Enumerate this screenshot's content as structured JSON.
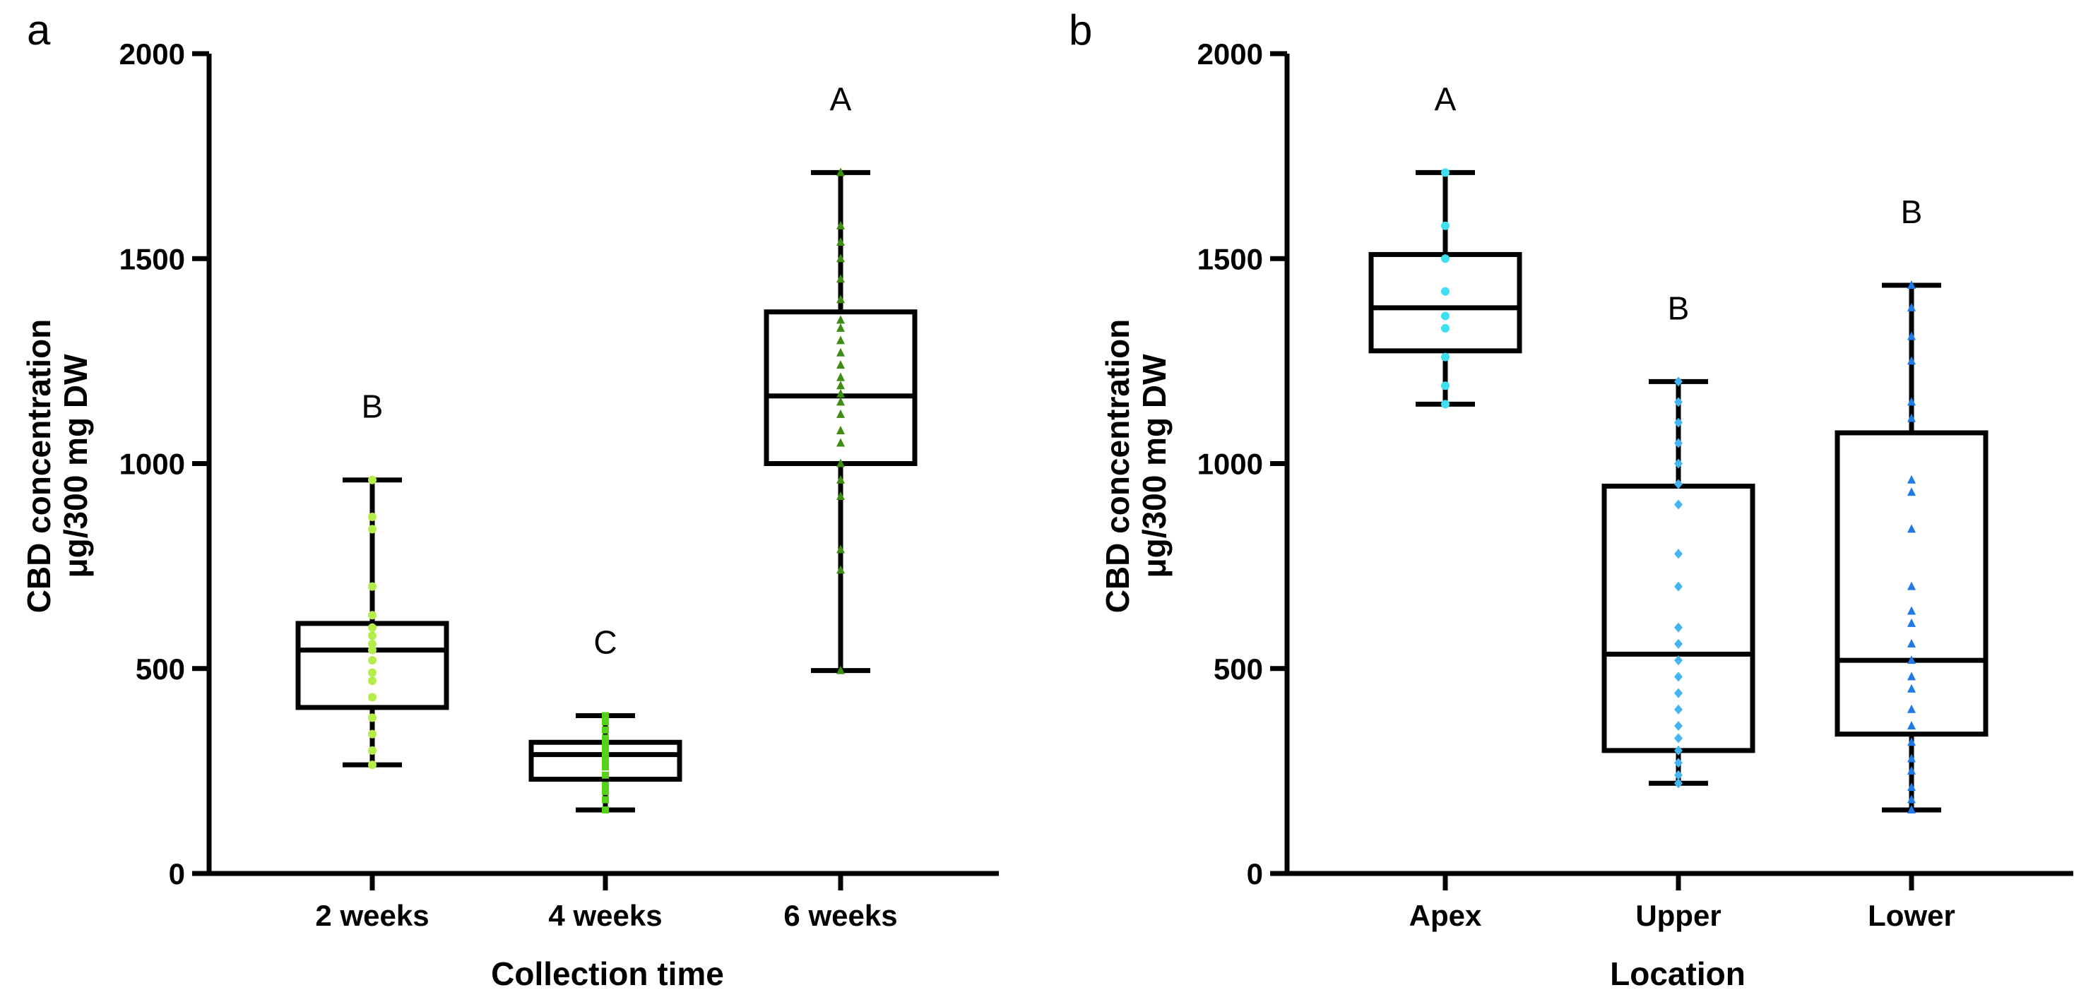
{
  "chart_data": [
    {
      "type": "box",
      "panel": "a",
      "xlabel": "Collection time",
      "ylabel": [
        "CBD concentration",
        "μg/300 mg DW"
      ],
      "ylim": [
        0,
        2000
      ],
      "yticks": [
        0,
        500,
        1000,
        1500,
        2000
      ],
      "point_color": "#7ddb1e",
      "categories": [
        {
          "label": "2 weeks",
          "letter": "B",
          "whisker_low": 265,
          "q1": 405,
          "median": 545,
          "q3": 610,
          "whisker_high": 960,
          "color": "#b6ec4a",
          "marker": "circle",
          "points": [
            265,
            300,
            340,
            380,
            430,
            470,
            490,
            520,
            545,
            560,
            580,
            600,
            630,
            700,
            840,
            870,
            960
          ]
        },
        {
          "label": "4 weeks",
          "letter": "C",
          "whisker_low": 155,
          "q1": 230,
          "median": 290,
          "q3": 320,
          "whisker_high": 385,
          "color": "#57d21a",
          "marker": "square",
          "points": [
            155,
            180,
            200,
            215,
            240,
            260,
            275,
            290,
            300,
            315,
            330,
            350,
            370,
            385
          ]
        },
        {
          "label": "6 weeks",
          "letter": "A",
          "whisker_low": 495,
          "q1": 1000,
          "median": 1165,
          "q3": 1370,
          "whisker_high": 1710,
          "color": "#3f8c12",
          "marker": "triangle",
          "points": [
            495,
            740,
            790,
            920,
            960,
            1000,
            1050,
            1080,
            1120,
            1150,
            1170,
            1190,
            1210,
            1240,
            1270,
            1300,
            1330,
            1350,
            1400,
            1450,
            1500,
            1540,
            1580,
            1710
          ]
        }
      ]
    },
    {
      "type": "box",
      "panel": "b",
      "xlabel": "Location",
      "ylabel": [
        "CBD concentration",
        "μg/300 mg DW"
      ],
      "ylim": [
        0,
        2000
      ],
      "yticks": [
        0,
        500,
        1000,
        1500,
        2000
      ],
      "categories": [
        {
          "label": "Apex",
          "letter": "A",
          "whisker_low": 1145,
          "q1": 1275,
          "median": 1380,
          "q3": 1510,
          "whisker_high": 1710,
          "color": "#3ee0f0",
          "marker": "circle",
          "points": [
            1145,
            1190,
            1260,
            1330,
            1360,
            1420,
            1500,
            1580,
            1710
          ]
        },
        {
          "label": "Upper",
          "letter": "B",
          "whisker_low": 220,
          "q1": 300,
          "median": 535,
          "q3": 945,
          "whisker_high": 1200,
          "color": "#44b4f2",
          "marker": "diamond",
          "points": [
            220,
            240,
            270,
            300,
            330,
            360,
            400,
            440,
            480,
            520,
            560,
            600,
            700,
            780,
            900,
            950,
            1000,
            1050,
            1100,
            1150,
            1200
          ]
        },
        {
          "label": "Lower",
          "letter": "B",
          "whisker_low": 155,
          "q1": 340,
          "median": 520,
          "q3": 1075,
          "whisker_high": 1435,
          "color": "#1f7ae8",
          "marker": "triangle",
          "points": [
            155,
            180,
            210,
            250,
            280,
            320,
            360,
            400,
            450,
            480,
            520,
            560,
            610,
            640,
            700,
            840,
            930,
            960,
            1110,
            1150,
            1250,
            1310,
            1380,
            1435
          ]
        }
      ]
    }
  ]
}
